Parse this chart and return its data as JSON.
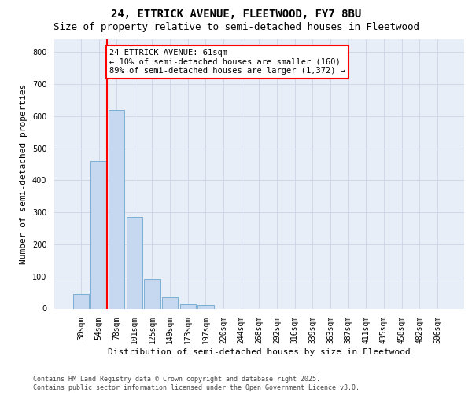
{
  "title_line1": "24, ETTRICK AVENUE, FLEETWOOD, FY7 8BU",
  "title_line2": "Size of property relative to semi-detached houses in Fleetwood",
  "xlabel": "Distribution of semi-detached houses by size in Fleetwood",
  "ylabel": "Number of semi-detached properties",
  "property_label": "24 ETTRICK AVENUE: 61sqm",
  "annotation_line2": "← 10% of semi-detached houses are smaller (160)",
  "annotation_line3": "89% of semi-detached houses are larger (1,372) →",
  "bar_categories": [
    "30sqm",
    "54sqm",
    "78sqm",
    "101sqm",
    "125sqm",
    "149sqm",
    "173sqm",
    "197sqm",
    "220sqm",
    "244sqm",
    "268sqm",
    "292sqm",
    "316sqm",
    "339sqm",
    "363sqm",
    "387sqm",
    "411sqm",
    "435sqm",
    "458sqm",
    "482sqm",
    "506sqm"
  ],
  "bar_values": [
    45,
    460,
    620,
    285,
    93,
    35,
    13,
    10,
    0,
    0,
    0,
    0,
    0,
    0,
    0,
    0,
    0,
    0,
    0,
    0,
    0
  ],
  "bar_color": "#c5d8f0",
  "bar_edge_color": "#7bafd4",
  "vline_x": 1.45,
  "ylim": [
    0,
    840
  ],
  "yticks": [
    0,
    100,
    200,
    300,
    400,
    500,
    600,
    700,
    800
  ],
  "grid_color": "#d0d8e8",
  "bg_color": "#e8eef8",
  "footer_line1": "Contains HM Land Registry data © Crown copyright and database right 2025.",
  "footer_line2": "Contains public sector information licensed under the Open Government Licence v3.0.",
  "title_fontsize": 10,
  "subtitle_fontsize": 9,
  "axis_label_fontsize": 8,
  "tick_fontsize": 7,
  "annotation_fontsize": 7.5,
  "footer_fontsize": 6
}
